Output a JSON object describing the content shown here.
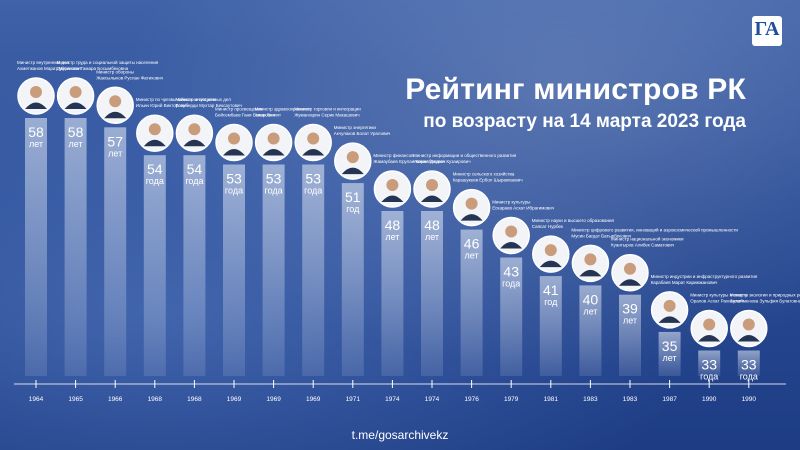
{
  "title": {
    "line1": "Рейтинг министров РК",
    "line2": "по возрасту на 14 марта 2023 года"
  },
  "logo_text": "ГА",
  "source": "t.me/gosarchivekz",
  "colors": {
    "background": "#2b4d97",
    "bar": "#e9eff9",
    "text": "#ffffff",
    "timeline": "#ffffff"
  },
  "chart_data": {
    "type": "bar",
    "title": "Рейтинг министров РК по возрасту на 14 марта 2023 года",
    "value_unit_labels": [
      "лет",
      "года"
    ],
    "categories": [
      "1964",
      "1965",
      "1966",
      "1968",
      "1968",
      "1969",
      "1969",
      "1969",
      "1971",
      "1974",
      "1974",
      "1976",
      "1979",
      "1981",
      "1983",
      "1983",
      "1987",
      "1990",
      "1990"
    ],
    "values": [
      58,
      58,
      57,
      54,
      54,
      53,
      53,
      53,
      51,
      48,
      48,
      46,
      43,
      41,
      40,
      39,
      35,
      33,
      33
    ],
    "value_units": [
      "лет",
      "лет",
      "лет",
      "года",
      "года",
      "года",
      "года",
      "года",
      "год",
      "лет",
      "лет",
      "лет",
      "года",
      "год",
      "лет",
      "лет",
      "лет",
      "года",
      "года"
    ],
    "ministers": [
      {
        "post": "Министр внутренних дел",
        "name": "Ахметжанов Марат Муратович"
      },
      {
        "post": "Министр труда и социальной защиты населения",
        "name": "Дуйсенова Тамара Босымбековна"
      },
      {
        "post": "Министр обороны",
        "name": "Жаксылыков Руслан Фатихович"
      },
      {
        "post": "Министр по чрезвычайным ситуациям",
        "name": "Ильин Юрий Викторович"
      },
      {
        "post": "Министр иностранных дел",
        "name": "Тлеуберди Мухтар Бексаутович"
      },
      {
        "post": "Министр просвещения",
        "name": "Бейсембаев Гани Бекенович"
      },
      {
        "post": "Министр здравоохранения",
        "name": "Ажар Гиният"
      },
      {
        "post": "Министр торговли и интеграции",
        "name": "Жумангарин Серик Макашевич"
      },
      {
        "post": "Министр энергетики",
        "name": "Акчулаков Болат Уралович"
      },
      {
        "post": "Министр финансов",
        "name": "Жамаубаев Ерулан Кенжебекович"
      },
      {
        "post": "Министр информации и общественного развития",
        "name": "Умаров Даурен Кузаирович"
      },
      {
        "post": "Министр сельского хозяйства",
        "name": "Карашукеев Ербол Шыракпаевич"
      },
      {
        "post": "Министр культуры",
        "name": "Ескараев Асхат Ибрагимович"
      },
      {
        "post": "Министр науки и высшего образования",
        "name": "Саясат Нурбек"
      },
      {
        "post": "Министр цифрового развития, инноваций и аэрокосмической промышленности",
        "name": "Мусин Багдат Батырбекович"
      },
      {
        "post": "Министр национальной экономики",
        "name": "Куантыров Алибек Саматович"
      },
      {
        "post": "Министр индустрии и инфраструктурного развития",
        "name": "Карабаев Марат Каримжанович"
      },
      {
        "post": "Министр культуры и спорта",
        "name": "Оралов Асхат Рахимович"
      },
      {
        "post": "Министр экологии и природных ресурсов",
        "name": "Сулейменова Зульфия Булатовна"
      }
    ]
  }
}
